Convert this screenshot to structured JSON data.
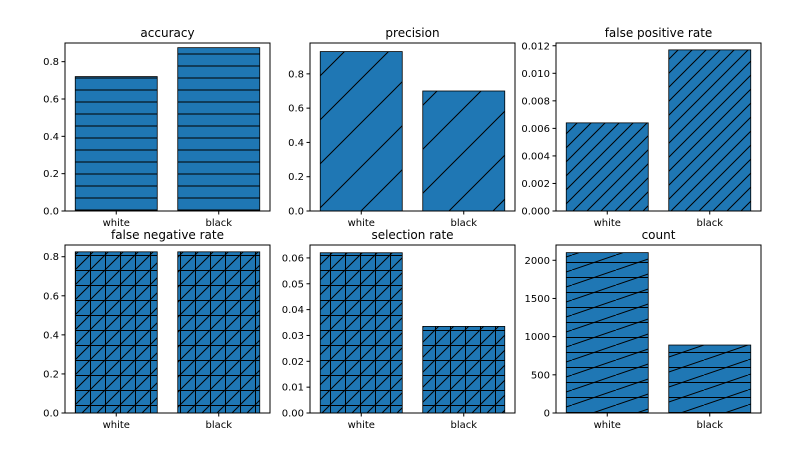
{
  "chart_data": [
    {
      "type": "bar",
      "title": "accuracy",
      "categories": [
        "white",
        "black"
      ],
      "values": [
        0.72,
        0.875
      ],
      "ylim": [
        0,
        0.9
      ],
      "yticks": [
        "0.0",
        "0.2",
        "0.4",
        "0.6",
        "0.8"
      ],
      "ytick_values": [
        0,
        0.2,
        0.4,
        0.6,
        0.8
      ],
      "hatch": "horizontal",
      "grid": false
    },
    {
      "type": "bar",
      "title": "precision",
      "categories": [
        "white",
        "black"
      ],
      "values": [
        0.93,
        0.7
      ],
      "ylim": [
        0,
        0.98
      ],
      "yticks": [
        "0.0",
        "0.2",
        "0.4",
        "0.6",
        "0.8"
      ],
      "ytick_values": [
        0,
        0.2,
        0.4,
        0.6,
        0.8
      ],
      "hatch": "diagonal",
      "grid": false
    },
    {
      "type": "bar",
      "title": "false positive rate",
      "categories": [
        "white",
        "black"
      ],
      "values": [
        0.0064,
        0.0117
      ],
      "ylim": [
        0,
        0.0122
      ],
      "yticks": [
        "0.000",
        "0.002",
        "0.004",
        "0.006",
        "0.008",
        "0.010",
        "0.012"
      ],
      "ytick_values": [
        0,
        0.002,
        0.004,
        0.006,
        0.008,
        0.01,
        0.012
      ],
      "hatch": "dense-diagonal",
      "grid": false
    },
    {
      "type": "bar",
      "title": "false negative rate",
      "categories": [
        "white",
        "black"
      ],
      "values": [
        0.825,
        0.825
      ],
      "ylim": [
        0,
        0.86
      ],
      "yticks": [
        "0.0",
        "0.2",
        "0.4",
        "0.6",
        "0.8"
      ],
      "ytick_values": [
        0,
        0.2,
        0.4,
        0.6,
        0.8
      ],
      "hatch": "grid-diagonal",
      "grid": false
    },
    {
      "type": "bar",
      "title": "selection rate",
      "categories": [
        "white",
        "black"
      ],
      "values": [
        0.062,
        0.0335
      ],
      "ylim": [
        0,
        0.065
      ],
      "yticks": [
        "0.00",
        "0.01",
        "0.02",
        "0.03",
        "0.04",
        "0.05",
        "0.06"
      ],
      "ytick_values": [
        0,
        0.01,
        0.02,
        0.03,
        0.04,
        0.05,
        0.06
      ],
      "hatch": "grid-diagonal",
      "grid": false
    },
    {
      "type": "bar",
      "title": "count",
      "categories": [
        "white",
        "black"
      ],
      "values": [
        2100,
        890
      ],
      "ylim": [
        0,
        2200
      ],
      "yticks": [
        "0",
        "500",
        "1000",
        "1500",
        "2000"
      ],
      "ytick_values": [
        0,
        500,
        1000,
        1500,
        2000
      ],
      "hatch": "horizontal-diagonal",
      "grid": false
    }
  ],
  "colors": {
    "bar_fill": "#1f77b4",
    "hatch": "#000000",
    "axis": "#000000"
  }
}
